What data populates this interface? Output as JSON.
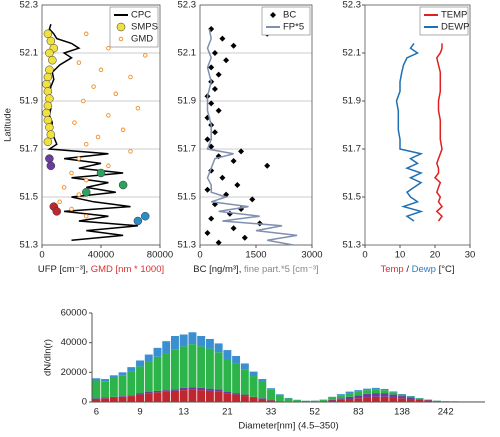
{
  "chart_data": [
    {
      "type": "profile",
      "y_label": "Latitude",
      "legend": "upper right",
      "x_label": [
        {
          "text": "UFP [cm⁻³], ",
          "color": "#222222"
        },
        {
          "text": "GMD [nm * 1000]",
          "color": "#d9302c"
        }
      ],
      "xlim": [
        0,
        80000
      ],
      "xticks": [
        0,
        40000,
        80000
      ],
      "ylim": [
        51.3,
        52.3
      ],
      "yticks": [
        51.3,
        51.5,
        51.7,
        51.9,
        52.1,
        52.3
      ],
      "grid": true,
      "series": [
        {
          "name": "CPC",
          "kind": "line",
          "color": "#000000",
          "y": [
            51.32,
            51.34,
            51.36,
            51.38,
            51.4,
            51.42,
            51.44,
            51.46,
            51.48,
            51.5,
            51.52,
            51.54,
            51.56,
            51.58,
            51.6,
            51.62,
            51.64,
            51.66,
            51.68,
            51.7,
            51.72,
            51.75,
            51.78,
            51.81,
            51.84,
            51.87,
            51.9,
            51.93,
            51.96,
            51.99,
            52.02,
            52.05,
            52.08,
            52.1,
            52.12,
            52.14,
            52.16,
            52.18,
            52.2,
            52.22
          ],
          "x": [
            20000,
            55000,
            30000,
            65000,
            25000,
            45000,
            15000,
            60000,
            35000,
            20000,
            50000,
            30000,
            45000,
            20000,
            55000,
            25000,
            40000,
            15000,
            45000,
            5000,
            10000,
            8000,
            6000,
            7000,
            5000,
            6000,
            4000,
            5000,
            6000,
            8000,
            7000,
            12000,
            20000,
            15000,
            25000,
            20000,
            10000,
            8000,
            5000,
            6000
          ]
        },
        {
          "name": "SMPS",
          "kind": "scatter",
          "marker": "circle",
          "color": "#f0e040",
          "y": [
            52.18,
            52.15,
            52.12,
            52.1,
            52.07,
            52.03,
            52.0,
            51.97,
            51.94,
            51.91,
            51.88,
            51.85,
            51.82,
            51.79,
            51.76,
            51.73,
            51.66,
            51.63,
            51.6,
            51.55,
            51.52,
            51.46,
            51.44,
            51.42,
            51.4
          ],
          "x": [
            4000,
            6000,
            8000,
            5000,
            7000,
            5000,
            4000,
            3000,
            4000,
            5000,
            4000,
            3000,
            4000,
            5000,
            6000,
            4000,
            5000,
            6000,
            40000,
            55000,
            30000,
            8000,
            10000,
            70000,
            65000
          ],
          "point_colors": [
            "#f0e040",
            "#f0e040",
            "#f0e040",
            "#f0e040",
            "#f0e040",
            "#f0e040",
            "#f0e040",
            "#f0e040",
            "#f0e040",
            "#f0e040",
            "#f0e040",
            "#f0e040",
            "#f0e040",
            "#f0e040",
            "#f0e040",
            "#f0e040",
            "#6a3d9a",
            "#6a3d9a",
            "#2ca25f",
            "#2ca25f",
            "#2ca25f",
            "#c0262d",
            "#c0262d",
            "#2b8cc4",
            "#2b8cc4"
          ]
        },
        {
          "name": "GMD",
          "kind": "scatter",
          "marker": "small-circle",
          "color": "#f28c28",
          "y": [
            52.18,
            52.15,
            52.12,
            52.09,
            52.06,
            52.03,
            52.0,
            51.96,
            51.93,
            51.9,
            51.87,
            51.84,
            51.81,
            51.78,
            51.75,
            51.72,
            51.69,
            51.66,
            51.63,
            51.6,
            51.57,
            51.54,
            51.51,
            51.48,
            51.45,
            51.42
          ],
          "x": [
            30000,
            55000,
            45000,
            70000,
            25000,
            40000,
            60000,
            35000,
            50000,
            28000,
            65000,
            45000,
            22000,
            55000,
            38000,
            30000,
            60000,
            25000,
            45000,
            20000,
            30000,
            15000,
            25000,
            12000,
            20000,
            30000
          ]
        }
      ]
    },
    {
      "type": "profile",
      "legend": "upper right",
      "x_label": [
        {
          "text": "BC [ng/m³], ",
          "color": "#222222"
        },
        {
          "text": "fine part.*5 [cm⁻³]",
          "color": "#888888"
        }
      ],
      "xlim": [
        0,
        3000
      ],
      "xticks": [
        0,
        1500,
        3000
      ],
      "ylim": [
        51.3,
        52.3
      ],
      "yticks": [
        51.3,
        51.5,
        51.7,
        51.9,
        52.1,
        52.3
      ],
      "grid": true,
      "series": [
        {
          "name": "BC",
          "kind": "scatter",
          "marker": "diamond",
          "color": "#000000",
          "y": [
            51.31,
            51.33,
            51.35,
            51.37,
            51.39,
            51.41,
            51.43,
            51.45,
            51.47,
            51.49,
            51.51,
            51.53,
            51.55,
            51.58,
            51.61,
            51.63,
            51.65,
            51.67,
            51.69,
            51.71,
            51.74,
            51.77,
            51.8,
            51.83,
            51.86,
            51.89,
            51.92,
            51.95,
            51.98,
            52.01,
            52.04,
            52.07,
            52.1,
            52.13,
            52.16,
            52.18,
            52.2
          ],
          "x": [
            500,
            1200,
            200,
            900,
            1600,
            300,
            800,
            1100,
            400,
            1400,
            700,
            200,
            1000,
            600,
            300,
            1800,
            900,
            500,
            1100,
            300,
            200,
            400,
            300,
            200,
            500,
            300,
            200,
            400,
            300,
            500,
            300,
            700,
            400,
            900,
            600,
            1800,
            300
          ]
        },
        {
          "name": "FP*5",
          "kind": "line",
          "color": "#8090b0",
          "y": [
            51.3,
            51.32,
            51.34,
            51.36,
            51.38,
            51.4,
            51.42,
            51.44,
            51.46,
            51.48,
            51.5,
            51.52,
            51.55,
            51.58,
            51.62,
            51.66,
            51.68,
            51.7,
            51.74,
            51.8,
            51.86,
            51.92,
            51.98,
            52.04,
            52.08,
            52.12,
            52.16,
            52.2
          ],
          "x": [
            2500,
            1800,
            2600,
            1500,
            2200,
            600,
            1600,
            500,
            1300,
            300,
            700,
            300,
            300,
            200,
            300,
            400,
            900,
            200,
            300,
            300,
            200,
            200,
            300,
            200,
            300,
            200,
            300,
            250
          ]
        }
      ]
    },
    {
      "type": "profile",
      "legend": "upper right",
      "x_label": [
        {
          "text": "Temp",
          "color": "#d9302c"
        },
        {
          "text": " / ",
          "color": "#222222"
        },
        {
          "text": "Dewp",
          "color": "#2b7cc4"
        },
        {
          "text": " [°C]",
          "color": "#222222"
        }
      ],
      "xlim": [
        0,
        30
      ],
      "xticks": [
        0,
        10,
        20,
        30
      ],
      "ylim": [
        51.3,
        52.3
      ],
      "yticks": [
        51.3,
        51.5,
        51.7,
        51.9,
        52.1,
        52.3
      ],
      "grid": false,
      "series": [
        {
          "name": "TEMP",
          "kind": "line",
          "color": "#e02020",
          "y": [
            51.4,
            51.42,
            51.44,
            51.46,
            51.48,
            51.5,
            51.52,
            51.54,
            51.56,
            51.58,
            51.6,
            51.62,
            51.64,
            51.66,
            51.68,
            51.7,
            51.74,
            51.78,
            51.82,
            51.86,
            51.9,
            51.94,
            51.98,
            52.02,
            52.05,
            52.08,
            52.1,
            52.12,
            52.14
          ],
          "x": [
            21,
            22,
            20.5,
            22,
            21,
            21.5,
            20.5,
            21,
            21.5,
            20,
            21,
            21,
            20.5,
            21,
            21.5,
            22,
            21.5,
            21.5,
            21.5,
            21,
            21,
            21.5,
            21.5,
            21.5,
            21,
            20.5,
            21.5,
            22,
            22
          ]
        },
        {
          "name": "DEWP",
          "kind": "line",
          "color": "#1f6fb4",
          "y": [
            51.4,
            51.42,
            51.44,
            51.46,
            51.48,
            51.5,
            51.52,
            51.54,
            51.56,
            51.58,
            51.6,
            51.62,
            51.64,
            51.66,
            51.68,
            51.7,
            51.74,
            51.78,
            51.82,
            51.86,
            51.9,
            51.94,
            51.98,
            52.02,
            52.05,
            52.08,
            52.1,
            52.12,
            52.14
          ],
          "x": [
            14,
            12,
            16,
            11,
            15,
            13,
            12,
            14,
            16,
            13,
            16,
            12,
            15,
            13,
            16,
            10,
            10,
            9.5,
            9.5,
            9.5,
            9,
            10,
            10,
            10.5,
            11,
            12,
            15,
            13,
            14
          ]
        }
      ]
    },
    {
      "type": "bar",
      "stacked": true,
      "y_label": "dN/dln(r)",
      "x_label": "Diameter[nm] (4.5–350)",
      "ylim": [
        0,
        60000
      ],
      "yticks": [
        0,
        20000,
        40000,
        60000
      ],
      "categories": [
        "6",
        null,
        null,
        null,
        null,
        "9",
        null,
        null,
        null,
        null,
        "13",
        null,
        null,
        null,
        null,
        "21",
        null,
        null,
        null,
        null,
        "33",
        null,
        null,
        null,
        null,
        "52",
        null,
        null,
        null,
        null,
        "83",
        null,
        null,
        null,
        null,
        "138",
        null,
        null,
        null,
        null,
        "242",
        null,
        null,
        null,
        null
      ],
      "series": [
        {
          "color": "#c0262d",
          "values": [
            2000,
            2500,
            3000,
            3500,
            4000,
            5000,
            6000,
            6500,
            7000,
            7500,
            8000,
            8500,
            8000,
            7500,
            7000,
            6000,
            5000,
            4000,
            3000,
            2000,
            1000,
            500,
            300,
            200,
            200,
            300,
            500,
            1000,
            1500,
            2000,
            2500,
            3000,
            3500,
            3500,
            3000,
            2500,
            2000,
            1500,
            1000,
            500,
            300,
            200,
            100,
            100,
            100
          ]
        },
        {
          "color": "#6a3d9a",
          "values": [
            500,
            500,
            500,
            500,
            500,
            1000,
            1000,
            1000,
            1000,
            1000,
            1500,
            1500,
            1500,
            1500,
            1500,
            1000,
            1000,
            1000,
            500,
            500,
            300,
            200,
            100,
            100,
            100,
            100,
            200,
            500,
            1000,
            1500,
            2000,
            2500,
            2500,
            2500,
            2000,
            1500,
            1000,
            500,
            300,
            200,
            100,
            100,
            100,
            100,
            100
          ]
        },
        {
          "color": "#2cb34a",
          "values": [
            12000,
            11000,
            13000,
            14000,
            16000,
            18000,
            20000,
            23000,
            25000,
            27000,
            28000,
            29000,
            28000,
            27000,
            25000,
            22000,
            20000,
            17000,
            14000,
            11000,
            7000,
            4000,
            2000,
            1000,
            500,
            500,
            800,
            1500,
            2000,
            2500,
            2500,
            2500,
            2500,
            2000,
            1500,
            1000,
            700,
            500,
            300,
            200,
            100,
            100,
            100,
            100,
            100
          ]
        },
        {
          "color": "#3a8fd0",
          "values": [
            1500,
            1500,
            1500,
            2000,
            3000,
            4000,
            5000,
            6000,
            8000,
            9000,
            8000,
            8000,
            7000,
            6500,
            6000,
            6000,
            5000,
            4000,
            3000,
            2000,
            1000,
            500,
            300,
            200,
            100,
            100,
            200,
            500,
            800,
            1000,
            1000,
            1000,
            1000,
            800,
            600,
            400,
            300,
            200,
            100,
            100,
            100,
            100,
            100,
            100,
            100
          ]
        }
      ]
    }
  ]
}
